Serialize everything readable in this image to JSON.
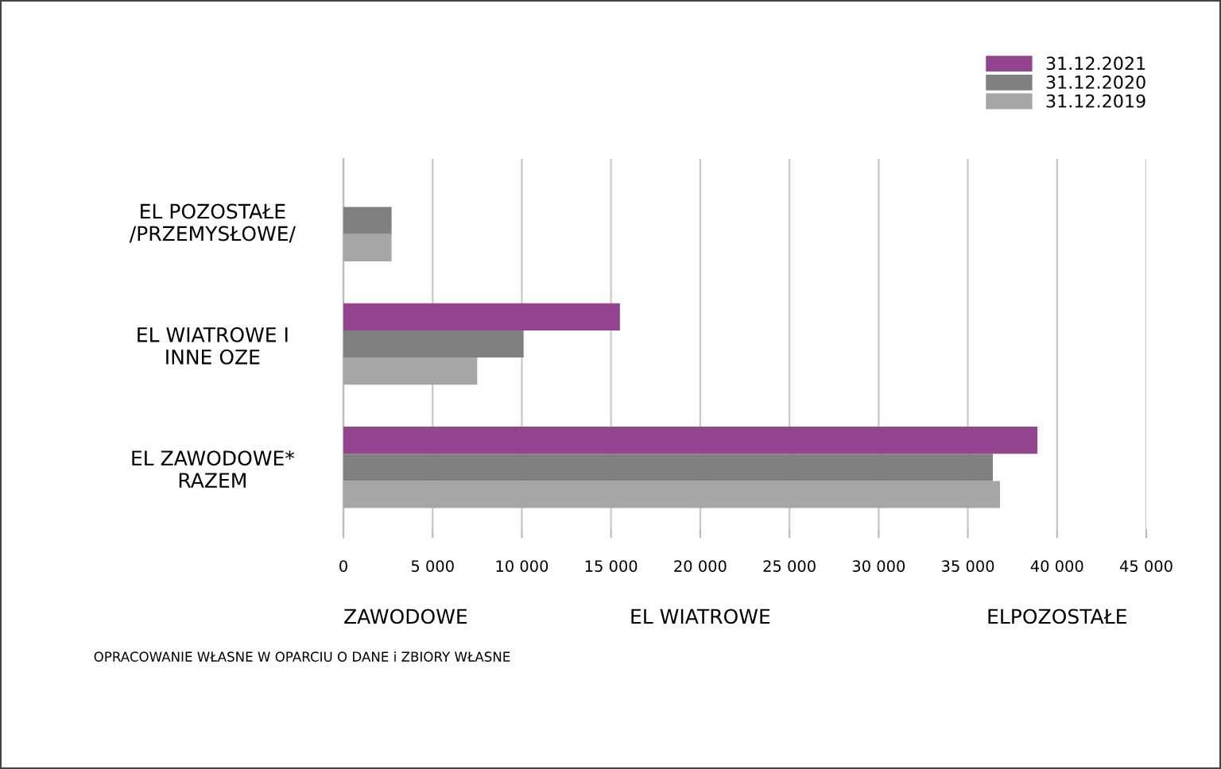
{
  "chart_data": {
    "type": "bar",
    "orientation": "horizontal",
    "categories": [
      "EL POZOSTAŁE /PRZEMYSŁOWE/",
      "EL WIATROWE I INNE OZE",
      "EL ZAWODOWE* RAZEM"
    ],
    "series": [
      {
        "name": "31.12.2021",
        "color": "#954590",
        "values": [
          null,
          15500,
          38900
        ]
      },
      {
        "name": "31.12.2020",
        "color": "#808080",
        "values": [
          2700,
          10100,
          36400
        ]
      },
      {
        "name": "31.12.2019",
        "color": "#a6a6a6",
        "values": [
          2700,
          7500,
          36800
        ]
      }
    ],
    "xlim": [
      0,
      45000
    ],
    "xticks": [
      {
        "value": 0,
        "label": "0"
      },
      {
        "value": 5000,
        "label": "5 000"
      },
      {
        "value": 10000,
        "label": "10 000"
      },
      {
        "value": 15000,
        "label": "15 000"
      },
      {
        "value": 20000,
        "label": "20 000"
      },
      {
        "value": 25000,
        "label": "25 000"
      },
      {
        "value": 30000,
        "label": "30 000"
      },
      {
        "value": 35000,
        "label": "35 000"
      },
      {
        "value": 40000,
        "label": "40 000"
      },
      {
        "value": 45000,
        "label": "45 000"
      }
    ],
    "grid": "x",
    "legend": "top right",
    "annotations": [
      "ZAWODOWE",
      "EL WIATROWE",
      "ELPOZOSTAŁE",
      "OPRACOWANIE WŁASNE W OPARCIU O DANE i ZBIORY WŁASNE"
    ]
  }
}
